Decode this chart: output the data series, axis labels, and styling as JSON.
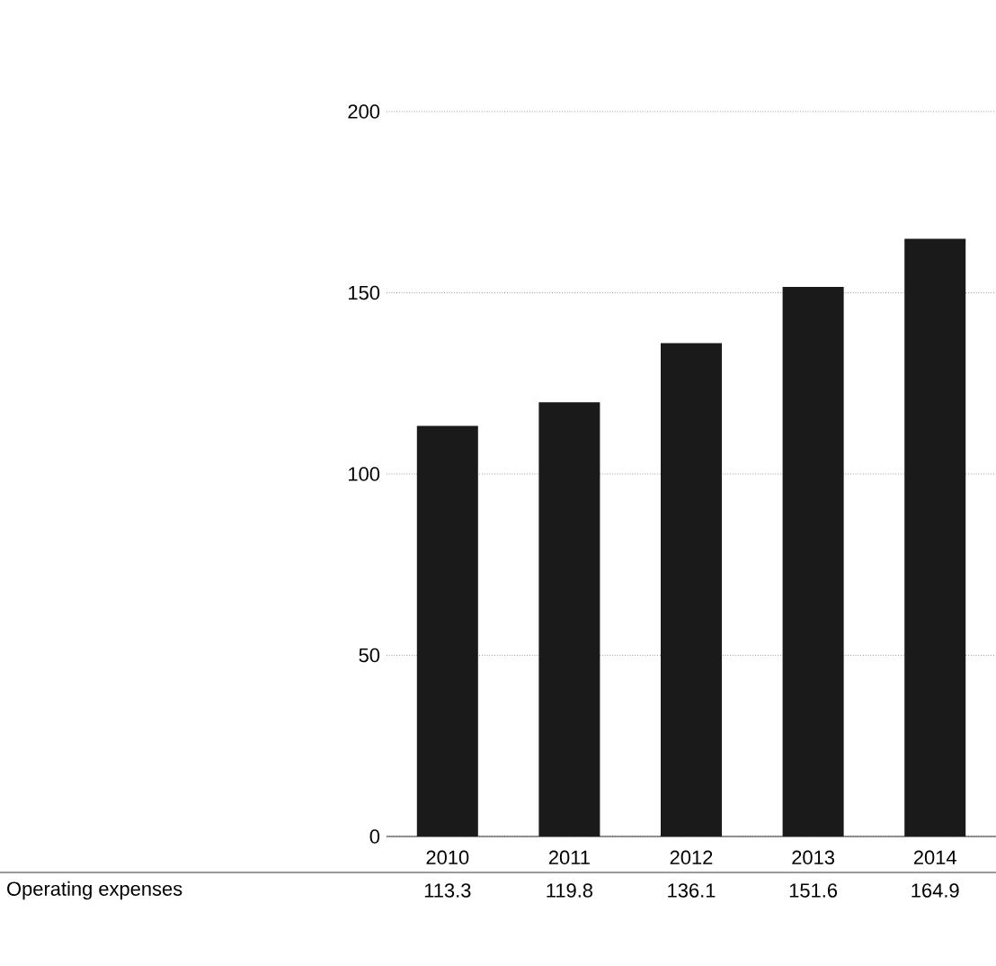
{
  "chart_data": {
    "type": "bar",
    "categories": [
      "2010",
      "2011",
      "2012",
      "2013",
      "2014"
    ],
    "series": [
      {
        "name": "Operating expenses",
        "color": "#1a1a1a",
        "values": [
          113.3,
          119.8,
          136.1,
          151.6,
          164.9
        ],
        "value_labels": [
          "113.3",
          "119.8",
          "136.1",
          "151.6",
          "164.9"
        ]
      }
    ],
    "ylim": [
      0,
      200
    ],
    "yticks": [
      0,
      50,
      100,
      150,
      200
    ],
    "grid": "y"
  }
}
